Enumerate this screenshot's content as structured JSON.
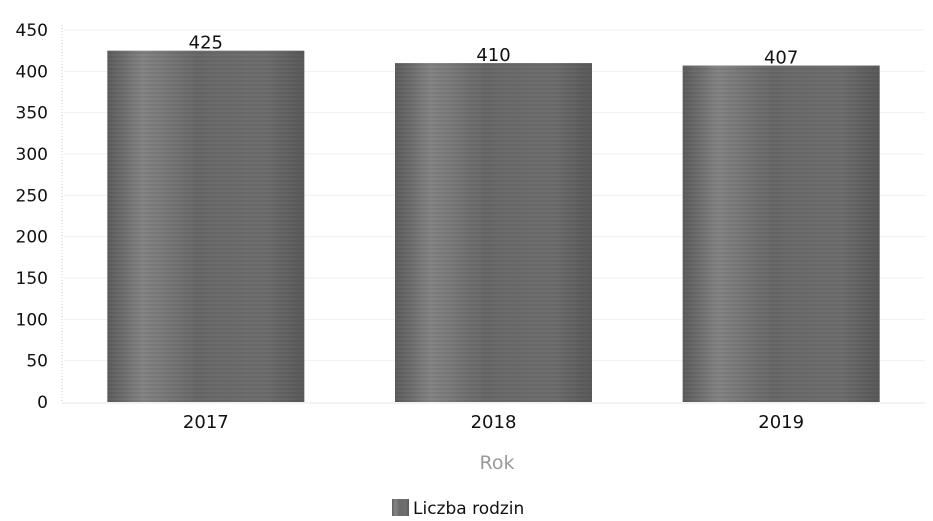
{
  "chart_data": {
    "type": "bar",
    "title": "",
    "xlabel": "Rok",
    "ylabel": "",
    "categories": [
      "2017",
      "2018",
      "2019"
    ],
    "series": [
      {
        "name": "Liczba rodzin",
        "values": [
          425,
          410,
          407
        ]
      }
    ],
    "ylim": [
      0,
      450
    ],
    "yticks": [
      0,
      50,
      100,
      150,
      200,
      250,
      300,
      350,
      400,
      450
    ],
    "grid": true,
    "legend": "bottom-center",
    "bar_color": "#6f6f6f"
  }
}
